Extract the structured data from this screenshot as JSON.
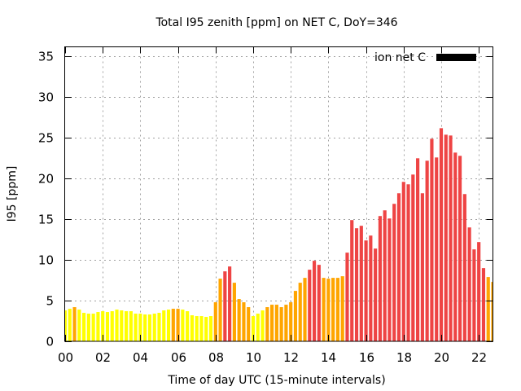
{
  "chart_data": {
    "type": "bar",
    "title": "Total I95 zenith [ppm] on NET C, DoY=346",
    "xlabel": "Time of day UTC (15-minute intervals)",
    "ylabel": "I95 [ppm]",
    "legend": {
      "label": "ion net C",
      "color": "#000000",
      "placement": "top-right"
    },
    "grid": true,
    "xlim": [
      0,
      22.75
    ],
    "ylim": [
      0,
      36.2
    ],
    "x_ticks": [
      "00",
      "02",
      "04",
      "06",
      "08",
      "10",
      "12",
      "14",
      "16",
      "18",
      "20",
      "22"
    ],
    "x_tick_values": [
      0,
      2,
      4,
      6,
      8,
      10,
      12,
      14,
      16,
      18,
      20,
      22
    ],
    "y_ticks": [
      0,
      5,
      10,
      15,
      20,
      25,
      30,
      35
    ],
    "interval_hours": 0.25,
    "color_scale": {
      "low": "#ffff00",
      "mid": "#ffa500",
      "high": "#ee4444"
    },
    "values": [
      3.8,
      4.0,
      4.2,
      3.9,
      3.5,
      3.4,
      3.4,
      3.6,
      3.7,
      3.6,
      3.7,
      3.9,
      3.8,
      3.7,
      3.7,
      3.4,
      3.4,
      3.3,
      3.3,
      3.4,
      3.5,
      3.8,
      3.9,
      4.0,
      4.0,
      3.9,
      3.7,
      3.2,
      3.1,
      3.1,
      3.0,
      3.1,
      4.8,
      7.7,
      8.6,
      9.2,
      7.2,
      5.2,
      4.8,
      4.2,
      3.1,
      3.4,
      3.8,
      4.2,
      4.5,
      4.5,
      4.2,
      4.5,
      4.8,
      6.2,
      7.2,
      7.8,
      8.8,
      9.9,
      9.4,
      7.8,
      7.7,
      7.8,
      7.8,
      8.0,
      10.9,
      14.9,
      13.9,
      14.2,
      12.4,
      13.0,
      11.4,
      15.4,
      16.1,
      15.1,
      16.9,
      18.2,
      19.6,
      19.3,
      20.5,
      22.5,
      18.2,
      22.2,
      24.9,
      22.6,
      26.2,
      25.4,
      25.3,
      23.2,
      22.8,
      18.1,
      14.0,
      11.3,
      12.2,
      9.0,
      7.9,
      7.3
    ],
    "bar_levels": [
      "low",
      "low",
      "mid",
      "low",
      "low",
      "low",
      "low",
      "low",
      "low",
      "low",
      "low",
      "low",
      "low",
      "low",
      "low",
      "low",
      "low",
      "low",
      "low",
      "low",
      "low",
      "low",
      "low",
      "mid",
      "mid",
      "low",
      "low",
      "low",
      "low",
      "low",
      "low",
      "low",
      "mid",
      "mid",
      "high",
      "high",
      "mid",
      "mid",
      "mid",
      "mid",
      "low",
      "low",
      "low",
      "mid",
      "mid",
      "mid",
      "mid",
      "mid",
      "mid",
      "mid",
      "mid",
      "mid",
      "high",
      "high",
      "high",
      "mid",
      "mid",
      "mid",
      "mid",
      "mid",
      "high",
      "high",
      "high",
      "high",
      "high",
      "high",
      "high",
      "high",
      "high",
      "high",
      "high",
      "high",
      "high",
      "high",
      "high",
      "high",
      "high",
      "high",
      "high",
      "high",
      "high",
      "high",
      "high",
      "high",
      "high",
      "high",
      "high",
      "high",
      "high",
      "high",
      "mid",
      "mid"
    ]
  }
}
